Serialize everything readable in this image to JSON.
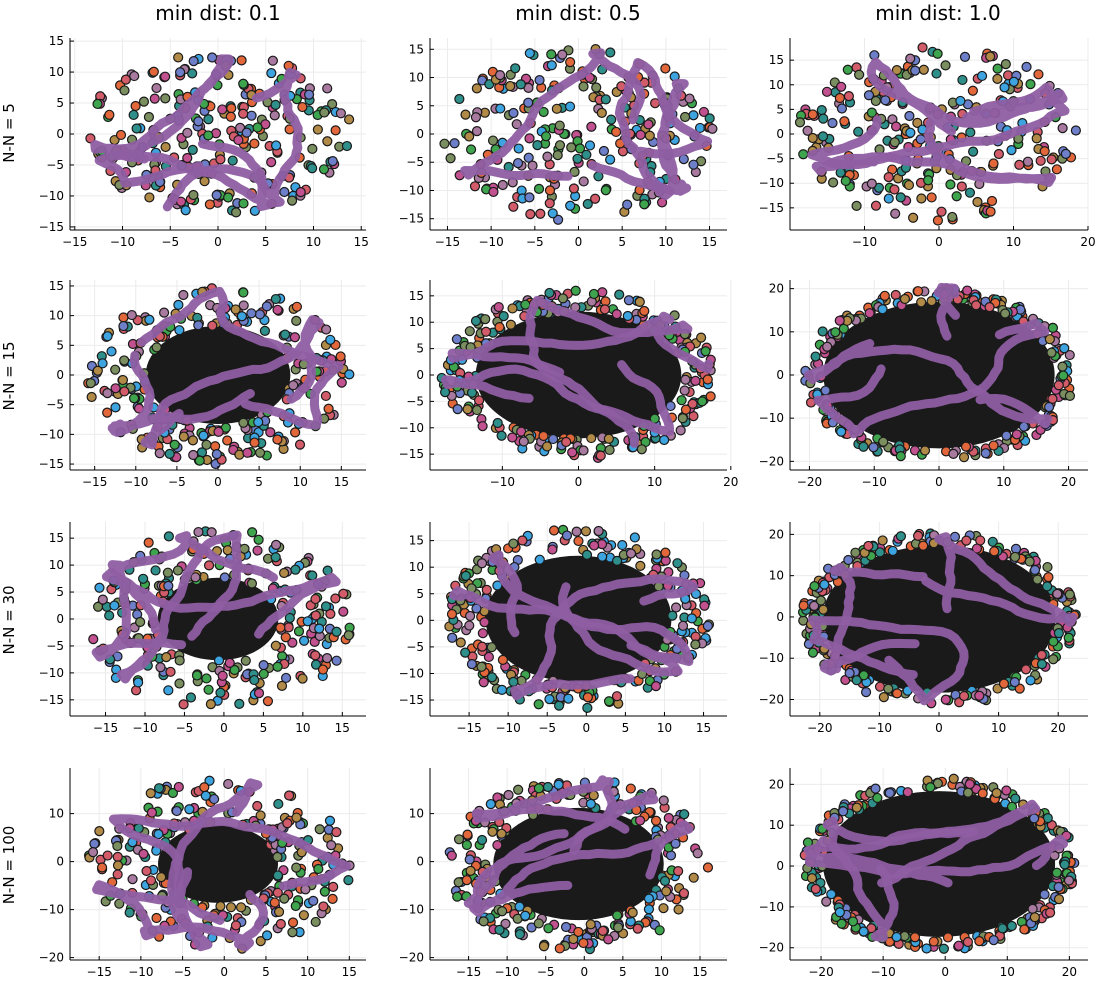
{
  "figure": {
    "col_titles": [
      "min dist: 0.1",
      "min dist: 0.5",
      "min dist: 1.0"
    ],
    "row_labels": [
      "N-N = 5",
      "N-N = 15",
      "N-N = 30",
      "N-N = 100"
    ]
  },
  "chart_data": [
    {
      "type": "scatter",
      "row": 0,
      "col": 0,
      "xlim": [
        -15.5,
        15.5
      ],
      "ylim": [
        -15.5,
        15.5
      ],
      "xticks": [
        -15,
        -10,
        -5,
        0,
        5,
        10,
        15
      ],
      "yticks": [
        -15,
        -10,
        -5,
        0,
        5,
        10,
        15
      ],
      "rx": 14,
      "ry": 13,
      "inner": 0.0,
      "grid": true,
      "legend": "none"
    },
    {
      "type": "scatter",
      "row": 0,
      "col": 1,
      "xlim": [
        -17,
        17
      ],
      "ylim": [
        -17,
        17
      ],
      "xticks": [
        -15,
        -10,
        -5,
        0,
        5,
        10,
        15
      ],
      "yticks": [
        -15,
        -10,
        -5,
        0,
        5,
        10,
        15
      ],
      "rx": 15.5,
      "ry": 15.5,
      "inner": 0.0,
      "grid": true,
      "legend": "none"
    },
    {
      "type": "scatter",
      "row": 0,
      "col": 2,
      "xlim": [
        -20,
        20
      ],
      "ylim": [
        -19.5,
        19.5
      ],
      "xticks": [
        -10,
        0,
        10,
        20
      ],
      "yticks": [
        -15,
        -10,
        -5,
        0,
        5,
        10,
        15
      ],
      "rx": 19,
      "ry": 18,
      "inner": 0.0,
      "grid": true,
      "legend": "none"
    },
    {
      "type": "scatter",
      "row": 1,
      "col": 0,
      "xlim": [
        -18,
        18
      ],
      "ylim": [
        -16,
        16
      ],
      "xticks": [
        -15,
        -10,
        -5,
        0,
        5,
        10,
        15
      ],
      "yticks": [
        -15,
        -10,
        -5,
        0,
        5,
        10,
        15
      ],
      "rx": 16,
      "ry": 15,
      "inner": 0.55,
      "grid": true,
      "legend": "none"
    },
    {
      "type": "scatter",
      "row": 1,
      "col": 1,
      "xlim": [
        -19.5,
        19.5
      ],
      "ylim": [
        -18,
        18
      ],
      "xticks": [
        -10,
        0,
        10,
        20
      ],
      "yticks": [
        -15,
        -10,
        -5,
        0,
        5,
        10,
        15
      ],
      "rx": 18,
      "ry": 16,
      "inner": 0.75,
      "grid": true,
      "legend": "none"
    },
    {
      "type": "scatter",
      "row": 1,
      "col": 2,
      "xlim": [
        -23,
        23
      ],
      "ylim": [
        -22,
        22
      ],
      "xticks": [
        -20,
        -10,
        0,
        10,
        20
      ],
      "yticks": [
        -20,
        -10,
        0,
        10,
        20
      ],
      "rx": 21,
      "ry": 20,
      "inner": 0.85,
      "grid": true,
      "legend": "none"
    },
    {
      "type": "scatter",
      "row": 2,
      "col": 0,
      "xlim": [
        -19.5,
        18
      ],
      "ylim": [
        -18,
        18
      ],
      "xticks": [
        -15,
        -10,
        -5,
        0,
        5,
        10,
        15
      ],
      "yticks": [
        -15,
        -10,
        -5,
        0,
        5,
        10,
        15
      ],
      "rx": 17,
      "ry": 17,
      "inner": 0.45,
      "grid": true,
      "legend": "none"
    },
    {
      "type": "scatter",
      "row": 2,
      "col": 1,
      "xlim": [
        -20,
        18
      ],
      "ylim": [
        -18,
        18.5
      ],
      "xticks": [
        -15,
        -10,
        -5,
        0,
        5,
        10,
        15
      ],
      "yticks": [
        -15,
        -10,
        -5,
        0,
        5,
        10,
        15
      ],
      "rx": 17,
      "ry": 17,
      "inner": 0.7,
      "grid": true,
      "legend": "none"
    },
    {
      "type": "scatter",
      "row": 2,
      "col": 2,
      "xlim": [
        -25,
        25
      ],
      "ylim": [
        -24,
        23
      ],
      "xticks": [
        -20,
        -10,
        0,
        10,
        20
      ],
      "yticks": [
        -20,
        -10,
        0,
        10,
        20
      ],
      "rx": 23,
      "ry": 21,
      "inner": 0.85,
      "grid": true,
      "legend": "none"
    },
    {
      "type": "scatter",
      "row": 3,
      "col": 0,
      "xlim": [
        -18.5,
        17
      ],
      "ylim": [
        -20.5,
        19.5
      ],
      "xticks": [
        -15,
        -10,
        -5,
        0,
        5,
        10,
        15
      ],
      "yticks": [
        -20,
        -10,
        0,
        10
      ],
      "rx": 16,
      "ry": 18,
      "inner": 0.45,
      "grid": true,
      "legend": "none"
    },
    {
      "type": "scatter",
      "row": 3,
      "col": 1,
      "xlim": [
        -20,
        18.5
      ],
      "ylim": [
        -20.5,
        19.5
      ],
      "xticks": [
        -15,
        -10,
        -5,
        0,
        5,
        10,
        15
      ],
      "yticks": [
        -20,
        -10,
        0,
        10
      ],
      "rx": 17,
      "ry": 18,
      "inner": 0.65,
      "grid": true,
      "legend": "none"
    },
    {
      "type": "scatter",
      "row": 3,
      "col": 2,
      "xlim": [
        -25,
        23
      ],
      "ylim": [
        -23,
        24
      ],
      "xticks": [
        -20,
        -10,
        0,
        10,
        20
      ],
      "yticks": [
        -20,
        -10,
        0,
        10,
        20
      ],
      "rx": 22,
      "ry": 21,
      "inner": 0.85,
      "grid": true,
      "legend": "none"
    }
  ],
  "colors": {
    "purple": "#8e5ea2",
    "dark": "#1a1a1a",
    "grid": "#ebebeb",
    "axis": "#000000",
    "palette": [
      "#3da4e0",
      "#e2683c",
      "#3ea44d",
      "#c2518f",
      "#a97aa0",
      "#7b8e5f",
      "#2f8f8a",
      "#6d7fc9",
      "#b18a47",
      "#d35c6a"
    ]
  }
}
